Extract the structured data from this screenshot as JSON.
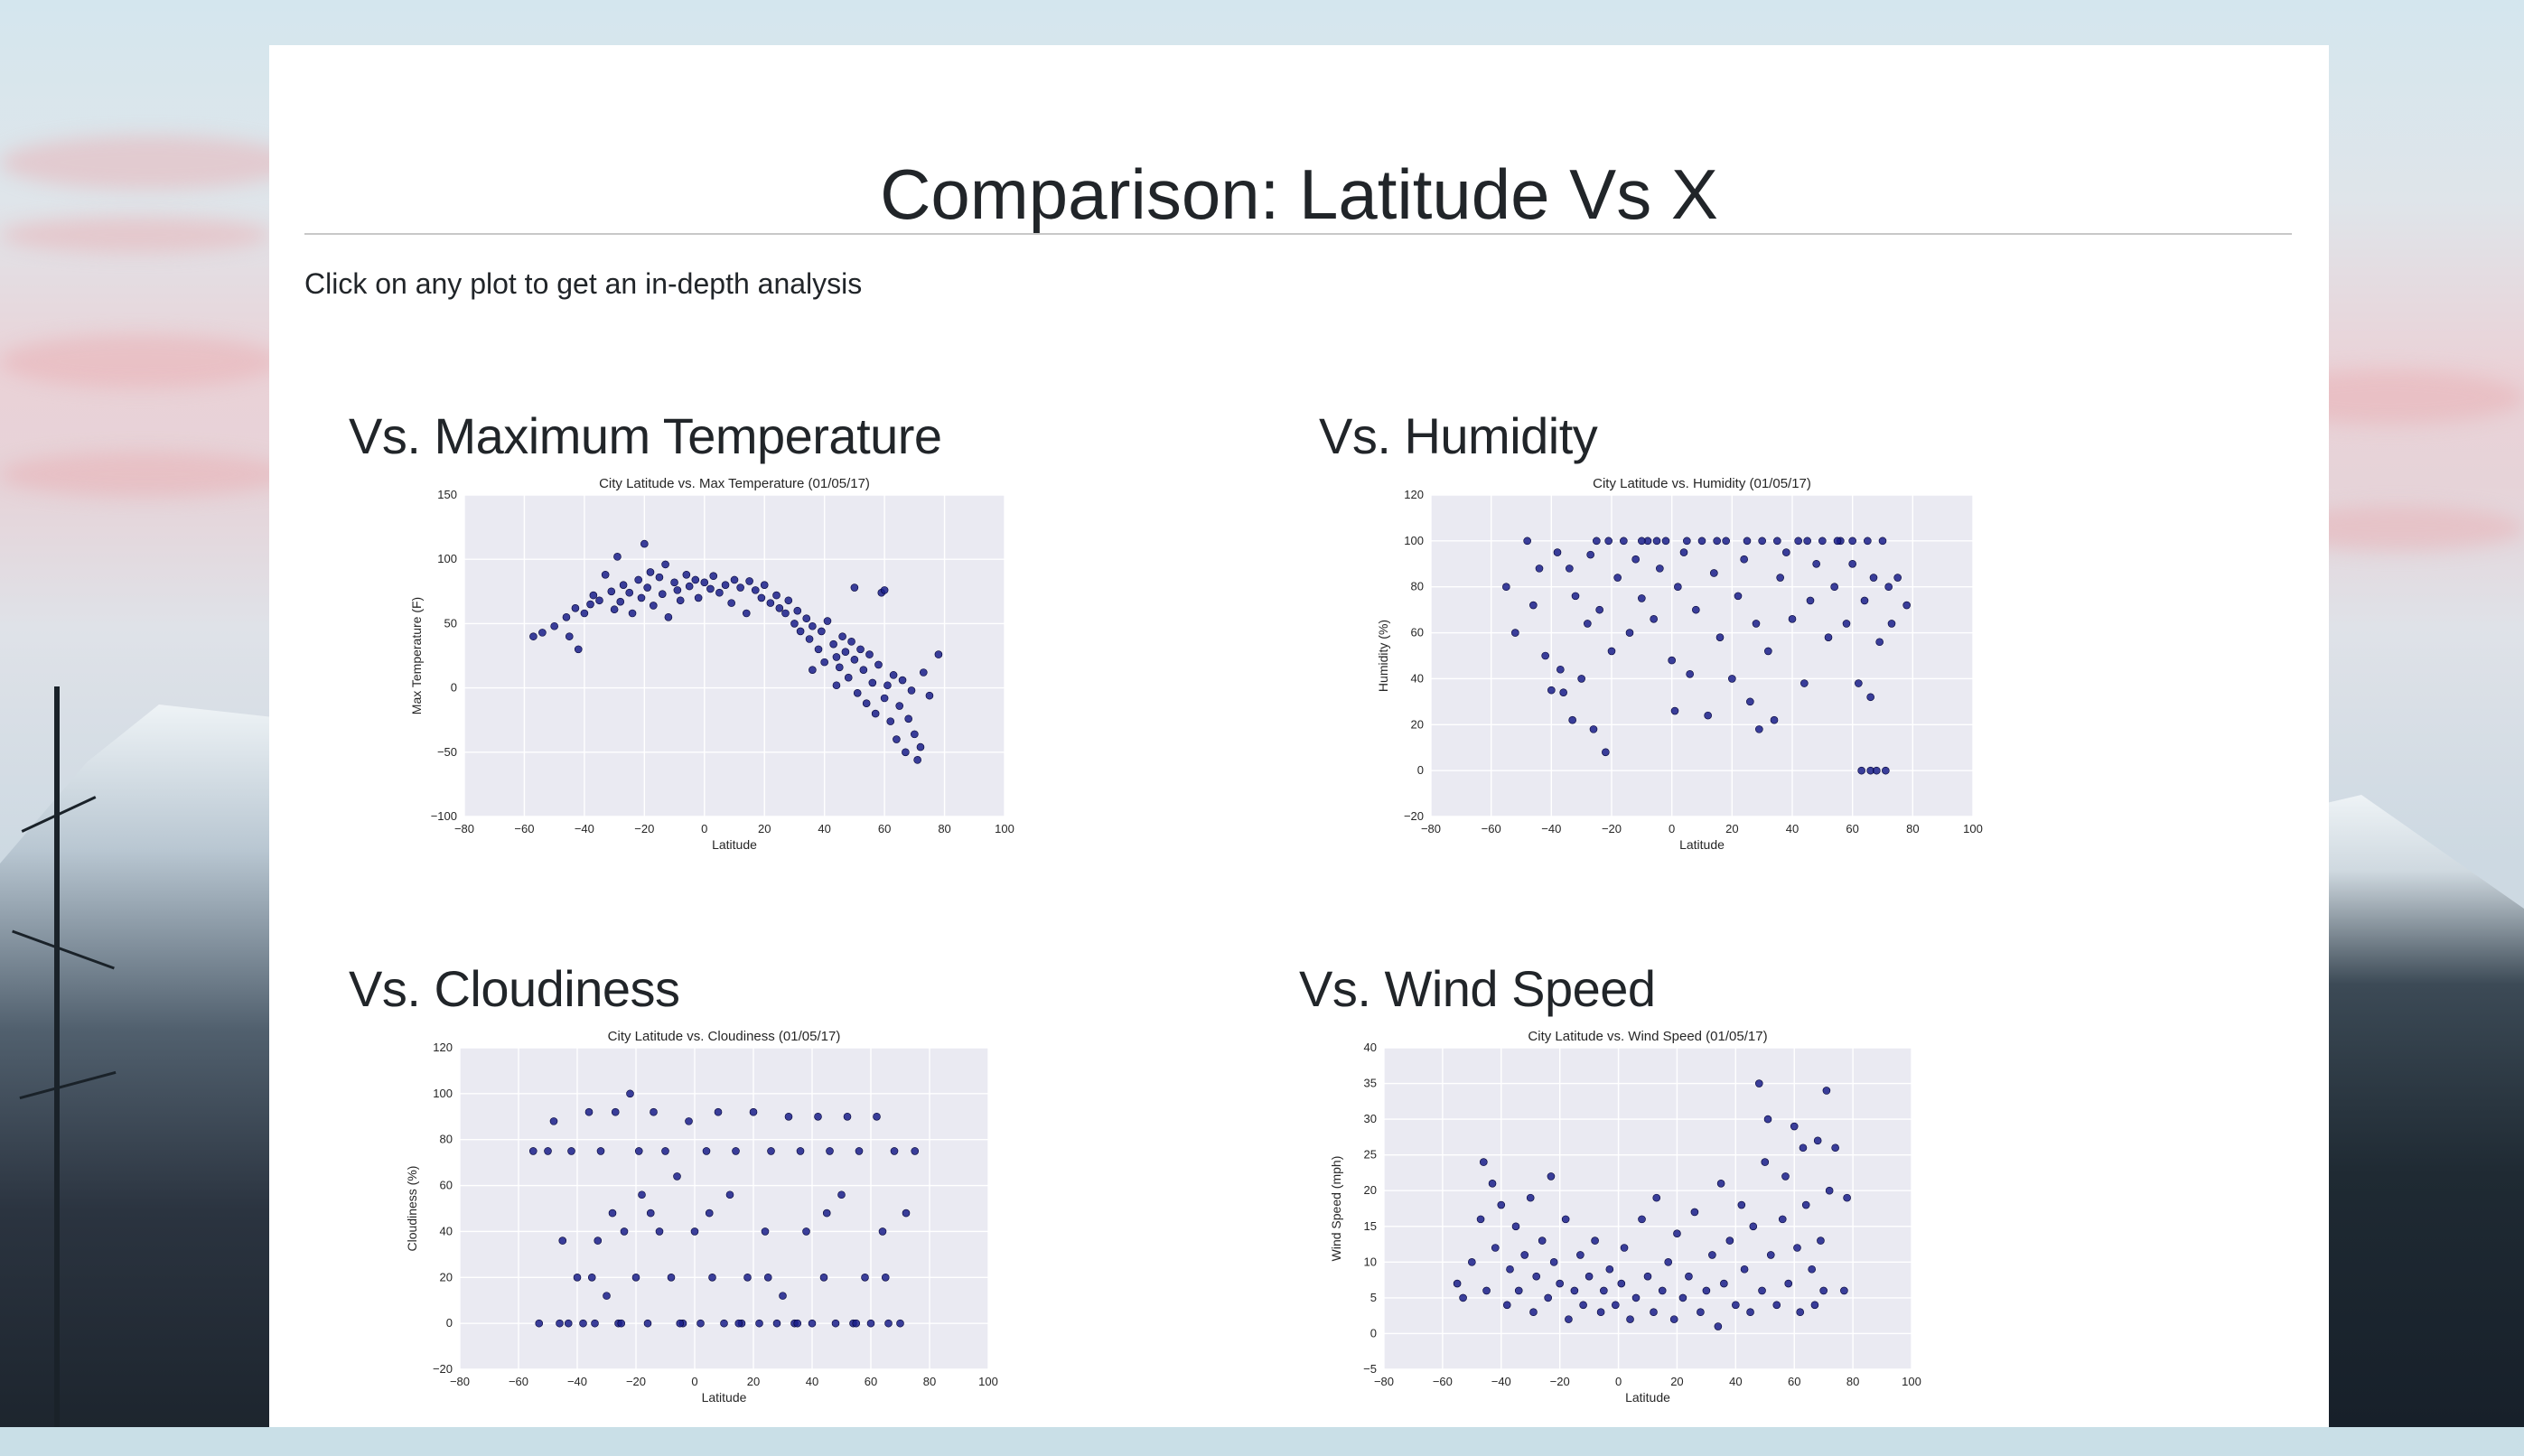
{
  "page": {
    "title": "Comparison: Latitude Vs X",
    "intro": "Click on any plot to get an in-depth analysis"
  },
  "colors": {
    "point": "#1a1f8a",
    "plot_bg": "#eaeaf2",
    "grid": "#ffffff",
    "text": "#212529"
  },
  "sections": [
    {
      "heading": "Vs. Maximum Temperature"
    },
    {
      "heading": "Vs. Humidity"
    },
    {
      "heading": "Vs. Cloudiness"
    },
    {
      "heading": "Vs. Wind Speed"
    }
  ],
  "chart_data": [
    {
      "type": "scatter",
      "title": "City Latitude vs. Max Temperature (01/05/17)",
      "xlabel": "Latitude",
      "ylabel": "Max Temperature (F)",
      "xlim": [
        -80,
        100
      ],
      "ylim": [
        -100,
        150
      ],
      "xticks": [
        -80,
        -60,
        -40,
        -20,
        0,
        20,
        40,
        60,
        80,
        100
      ],
      "yticks": [
        -100,
        -50,
        0,
        50,
        100,
        150
      ],
      "grid": true,
      "points": [
        [
          -57,
          40
        ],
        [
          -54,
          43
        ],
        [
          -50,
          48
        ],
        [
          -46,
          55
        ],
        [
          -45,
          40
        ],
        [
          -43,
          62
        ],
        [
          -40,
          58
        ],
        [
          -38,
          65
        ],
        [
          -37,
          72
        ],
        [
          -35,
          68
        ],
        [
          -33,
          88
        ],
        [
          -31,
          75
        ],
        [
          -30,
          61
        ],
        [
          -29,
          102
        ],
        [
          -28,
          67
        ],
        [
          -27,
          80
        ],
        [
          -25,
          74
        ],
        [
          -24,
          58
        ],
        [
          -22,
          84
        ],
        [
          -21,
          70
        ],
        [
          -20,
          112
        ],
        [
          -19,
          78
        ],
        [
          -18,
          90
        ],
        [
          -17,
          64
        ],
        [
          -15,
          86
        ],
        [
          -14,
          73
        ],
        [
          -13,
          96
        ],
        [
          -12,
          55
        ],
        [
          -10,
          82
        ],
        [
          -9,
          76
        ],
        [
          -8,
          68
        ],
        [
          -6,
          88
        ],
        [
          -5,
          79
        ],
        [
          -3,
          84
        ],
        [
          -2,
          70
        ],
        [
          0,
          82
        ],
        [
          2,
          77
        ],
        [
          3,
          87
        ],
        [
          5,
          74
        ],
        [
          7,
          80
        ],
        [
          9,
          66
        ],
        [
          10,
          84
        ],
        [
          12,
          78
        ],
        [
          14,
          58
        ],
        [
          15,
          83
        ],
        [
          17,
          76
        ],
        [
          19,
          70
        ],
        [
          20,
          80
        ],
        [
          22,
          66
        ],
        [
          24,
          72
        ],
        [
          25,
          62
        ],
        [
          27,
          58
        ],
        [
          28,
          68
        ],
        [
          30,
          50
        ],
        [
          31,
          60
        ],
        [
          32,
          44
        ],
        [
          34,
          54
        ],
        [
          35,
          38
        ],
        [
          36,
          48
        ],
        [
          38,
          30
        ],
        [
          39,
          44
        ],
        [
          40,
          20
        ],
        [
          41,
          52
        ],
        [
          43,
          34
        ],
        [
          44,
          24
        ],
        [
          45,
          16
        ],
        [
          46,
          40
        ],
        [
          47,
          28
        ],
        [
          48,
          8
        ],
        [
          49,
          36
        ],
        [
          50,
          22
        ],
        [
          51,
          -4
        ],
        [
          52,
          30
        ],
        [
          53,
          14
        ],
        [
          54,
          -12
        ],
        [
          55,
          26
        ],
        [
          56,
          4
        ],
        [
          57,
          -20
        ],
        [
          58,
          18
        ],
        [
          59,
          74
        ],
        [
          60,
          -8
        ],
        [
          61,
          2
        ],
        [
          62,
          -26
        ],
        [
          63,
          10
        ],
        [
          64,
          -40
        ],
        [
          65,
          -14
        ],
        [
          66,
          6
        ],
        [
          67,
          -50
        ],
        [
          68,
          -24
        ],
        [
          69,
          -2
        ],
        [
          70,
          -36
        ],
        [
          71,
          -56
        ],
        [
          72,
          -46
        ],
        [
          73,
          12
        ],
        [
          75,
          -6
        ],
        [
          78,
          26
        ],
        [
          50,
          78
        ],
        [
          60,
          76
        ],
        [
          -42,
          30
        ],
        [
          36,
          14
        ],
        [
          44,
          2
        ]
      ]
    },
    {
      "type": "scatter",
      "title": "City Latitude vs. Humidity (01/05/17)",
      "xlabel": "Latitude",
      "ylabel": "Humidity (%)",
      "xlim": [
        -80,
        100
      ],
      "ylim": [
        -20,
        120
      ],
      "xticks": [
        -80,
        -60,
        -40,
        -20,
        0,
        20,
        40,
        60,
        80,
        100
      ],
      "yticks": [
        -20,
        0,
        20,
        40,
        60,
        80,
        100,
        120
      ],
      "grid": true,
      "points": [
        [
          -55,
          80
        ],
        [
          -52,
          60
        ],
        [
          -48,
          100
        ],
        [
          -46,
          72
        ],
        [
          -44,
          88
        ],
        [
          -42,
          50
        ],
        [
          -40,
          35
        ],
        [
          -38,
          95
        ],
        [
          -37,
          44
        ],
        [
          -36,
          34
        ],
        [
          -34,
          88
        ],
        [
          -33,
          22
        ],
        [
          -32,
          76
        ],
        [
          -30,
          40
        ],
        [
          -28,
          64
        ],
        [
          -27,
          94
        ],
        [
          -26,
          18
        ],
        [
          -24,
          70
        ],
        [
          -22,
          8
        ],
        [
          -21,
          100
        ],
        [
          -20,
          52
        ],
        [
          -18,
          84
        ],
        [
          -16,
          100
        ],
        [
          -14,
          60
        ],
        [
          -12,
          92
        ],
        [
          -10,
          75
        ],
        [
          -8,
          100
        ],
        [
          -6,
          66
        ],
        [
          -4,
          88
        ],
        [
          -2,
          100
        ],
        [
          0,
          48
        ],
        [
          1,
          26
        ],
        [
          2,
          80
        ],
        [
          4,
          95
        ],
        [
          6,
          42
        ],
        [
          8,
          70
        ],
        [
          10,
          100
        ],
        [
          12,
          24
        ],
        [
          14,
          86
        ],
        [
          16,
          58
        ],
        [
          18,
          100
        ],
        [
          20,
          40
        ],
        [
          22,
          76
        ],
        [
          24,
          92
        ],
        [
          26,
          30
        ],
        [
          28,
          64
        ],
        [
          29,
          18
        ],
        [
          30,
          100
        ],
        [
          32,
          52
        ],
        [
          34,
          22
        ],
        [
          36,
          84
        ],
        [
          38,
          95
        ],
        [
          40,
          66
        ],
        [
          42,
          100
        ],
        [
          44,
          38
        ],
        [
          46,
          74
        ],
        [
          48,
          90
        ],
        [
          50,
          100
        ],
        [
          52,
          58
        ],
        [
          54,
          80
        ],
        [
          56,
          100
        ],
        [
          58,
          64
        ],
        [
          60,
          90
        ],
        [
          62,
          38
        ],
        [
          63,
          0
        ],
        [
          64,
          74
        ],
        [
          65,
          100
        ],
        [
          66,
          0
        ],
        [
          67,
          84
        ],
        [
          68,
          0
        ],
        [
          69,
          56
        ],
        [
          70,
          100
        ],
        [
          71,
          0
        ],
        [
          72,
          80
        ],
        [
          73,
          64
        ],
        [
          75,
          84
        ],
        [
          78,
          72
        ],
        [
          -25,
          100
        ],
        [
          -10,
          100
        ],
        [
          5,
          100
        ],
        [
          25,
          100
        ],
        [
          45,
          100
        ],
        [
          60,
          100
        ],
        [
          -5,
          100
        ],
        [
          15,
          100
        ],
        [
          35,
          100
        ],
        [
          55,
          100
        ],
        [
          66,
          32
        ]
      ]
    },
    {
      "type": "scatter",
      "title": "City Latitude vs. Cloudiness (01/05/17)",
      "xlabel": "Latitude",
      "ylabel": "Cloudiness (%)",
      "xlim": [
        -80,
        100
      ],
      "ylim": [
        -20,
        120
      ],
      "xticks": [
        -80,
        -60,
        -40,
        -20,
        0,
        20,
        40,
        60,
        80,
        100
      ],
      "yticks": [
        -20,
        0,
        20,
        40,
        60,
        80,
        100,
        120
      ],
      "grid": true,
      "points": [
        [
          -55,
          75
        ],
        [
          -53,
          0
        ],
        [
          -50,
          75
        ],
        [
          -48,
          88
        ],
        [
          -46,
          0
        ],
        [
          -45,
          36
        ],
        [
          -43,
          0
        ],
        [
          -42,
          75
        ],
        [
          -40,
          20
        ],
        [
          -38,
          0
        ],
        [
          -36,
          92
        ],
        [
          -34,
          0
        ],
        [
          -33,
          36
        ],
        [
          -32,
          75
        ],
        [
          -30,
          12
        ],
        [
          -28,
          48
        ],
        [
          -27,
          92
        ],
        [
          -26,
          0
        ],
        [
          -24,
          40
        ],
        [
          -22,
          100
        ],
        [
          -20,
          20
        ],
        [
          -19,
          75
        ],
        [
          -18,
          56
        ],
        [
          -16,
          0
        ],
        [
          -14,
          92
        ],
        [
          -12,
          40
        ],
        [
          -10,
          75
        ],
        [
          -8,
          20
        ],
        [
          -6,
          64
        ],
        [
          -4,
          0
        ],
        [
          -2,
          88
        ],
        [
          0,
          40
        ],
        [
          2,
          0
        ],
        [
          4,
          75
        ],
        [
          6,
          20
        ],
        [
          8,
          92
        ],
        [
          10,
          0
        ],
        [
          12,
          56
        ],
        [
          14,
          75
        ],
        [
          16,
          0
        ],
        [
          18,
          20
        ],
        [
          20,
          92
        ],
        [
          22,
          0
        ],
        [
          24,
          40
        ],
        [
          26,
          75
        ],
        [
          28,
          0
        ],
        [
          30,
          12
        ],
        [
          32,
          90
        ],
        [
          34,
          0
        ],
        [
          36,
          75
        ],
        [
          38,
          40
        ],
        [
          40,
          0
        ],
        [
          42,
          90
        ],
        [
          44,
          20
        ],
        [
          46,
          75
        ],
        [
          48,
          0
        ],
        [
          50,
          56
        ],
        [
          52,
          90
        ],
        [
          54,
          0
        ],
        [
          56,
          75
        ],
        [
          58,
          20
        ],
        [
          60,
          0
        ],
        [
          62,
          90
        ],
        [
          64,
          40
        ],
        [
          66,
          0
        ],
        [
          68,
          75
        ],
        [
          70,
          0
        ],
        [
          72,
          48
        ],
        [
          75,
          75
        ],
        [
          -35,
          20
        ],
        [
          -15,
          48
        ],
        [
          5,
          48
        ],
        [
          25,
          20
        ],
        [
          45,
          48
        ],
        [
          65,
          20
        ],
        [
          -25,
          0
        ],
        [
          -5,
          0
        ],
        [
          15,
          0
        ],
        [
          35,
          0
        ],
        [
          55,
          0
        ]
      ]
    },
    {
      "type": "scatter",
      "title": "City Latitude vs. Wind Speed (01/05/17)",
      "xlabel": "Latitude",
      "ylabel": "Wind Speed (mph)",
      "xlim": [
        -80,
        100
      ],
      "ylim": [
        -5,
        40
      ],
      "xticks": [
        -80,
        -60,
        -40,
        -20,
        0,
        20,
        40,
        60,
        80,
        100
      ],
      "yticks": [
        -5,
        0,
        5,
        10,
        15,
        20,
        25,
        30,
        35,
        40
      ],
      "grid": true,
      "points": [
        [
          -55,
          7
        ],
        [
          -53,
          5
        ],
        [
          -50,
          10
        ],
        [
          -47,
          16
        ],
        [
          -46,
          24
        ],
        [
          -45,
          6
        ],
        [
          -43,
          21
        ],
        [
          -42,
          12
        ],
        [
          -40,
          18
        ],
        [
          -38,
          4
        ],
        [
          -37,
          9
        ],
        [
          -35,
          15
        ],
        [
          -34,
          6
        ],
        [
          -32,
          11
        ],
        [
          -30,
          19
        ],
        [
          -29,
          3
        ],
        [
          -28,
          8
        ],
        [
          -26,
          13
        ],
        [
          -24,
          5
        ],
        [
          -23,
          22
        ],
        [
          -22,
          10
        ],
        [
          -20,
          7
        ],
        [
          -18,
          16
        ],
        [
          -17,
          2
        ],
        [
          -15,
          6
        ],
        [
          -13,
          11
        ],
        [
          -12,
          4
        ],
        [
          -10,
          8
        ],
        [
          -8,
          13
        ],
        [
          -6,
          3
        ],
        [
          -5,
          6
        ],
        [
          -3,
          9
        ],
        [
          -1,
          4
        ],
        [
          1,
          7
        ],
        [
          2,
          12
        ],
        [
          4,
          2
        ],
        [
          6,
          5
        ],
        [
          8,
          16
        ],
        [
          10,
          8
        ],
        [
          12,
          3
        ],
        [
          13,
          19
        ],
        [
          15,
          6
        ],
        [
          17,
          10
        ],
        [
          19,
          2
        ],
        [
          20,
          14
        ],
        [
          22,
          5
        ],
        [
          24,
          8
        ],
        [
          26,
          17
        ],
        [
          28,
          3
        ],
        [
          30,
          6
        ],
        [
          32,
          11
        ],
        [
          34,
          1
        ],
        [
          35,
          21
        ],
        [
          36,
          7
        ],
        [
          38,
          13
        ],
        [
          40,
          4
        ],
        [
          42,
          18
        ],
        [
          43,
          9
        ],
        [
          45,
          3
        ],
        [
          46,
          15
        ],
        [
          48,
          35
        ],
        [
          49,
          6
        ],
        [
          50,
          24
        ],
        [
          51,
          30
        ],
        [
          52,
          11
        ],
        [
          54,
          4
        ],
        [
          56,
          16
        ],
        [
          57,
          22
        ],
        [
          58,
          7
        ],
        [
          60,
          29
        ],
        [
          61,
          12
        ],
        [
          62,
          3
        ],
        [
          63,
          26
        ],
        [
          64,
          18
        ],
        [
          66,
          9
        ],
        [
          67,
          4
        ],
        [
          68,
          27
        ],
        [
          69,
          13
        ],
        [
          70,
          6
        ],
        [
          71,
          34
        ],
        [
          72,
          20
        ],
        [
          74,
          26
        ],
        [
          78,
          19
        ],
        [
          77,
          6
        ]
      ]
    }
  ]
}
